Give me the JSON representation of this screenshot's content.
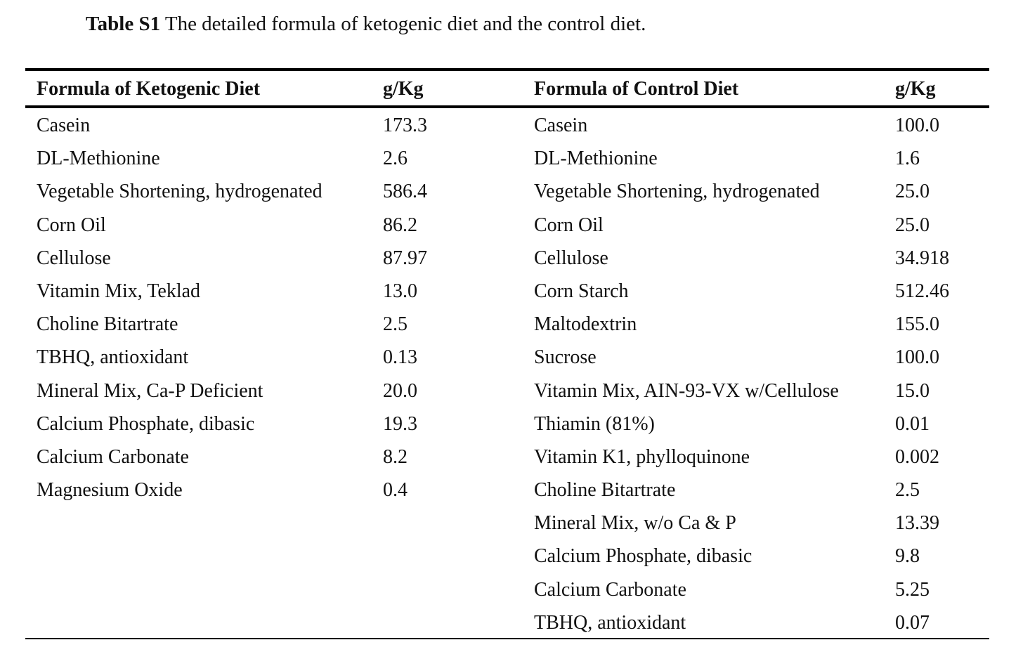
{
  "caption": {
    "label": "Table S1",
    "text": " The detailed formula of ketogenic diet and the control diet."
  },
  "table": {
    "headers": {
      "ketogenic_name": "Formula of Ketogenic Diet",
      "ketogenic_unit": "g/Kg",
      "control_name": "Formula of Control Diet",
      "control_unit": "g/Kg"
    },
    "rows": [
      {
        "k_name": "Casein",
        "k_val": "173.3",
        "c_name": "Casein",
        "c_val": "100.0"
      },
      {
        "k_name": "DL-Methionine",
        "k_val": "2.6",
        "c_name": "DL-Methionine",
        "c_val": "1.6"
      },
      {
        "k_name": "Vegetable Shortening, hydrogenated",
        "k_val": "586.4",
        "c_name": "Vegetable Shortening, hydrogenated",
        "c_val": "25.0"
      },
      {
        "k_name": "Corn Oil",
        "k_val": "86.2",
        "c_name": "Corn Oil",
        "c_val": "25.0"
      },
      {
        "k_name": "Cellulose",
        "k_val": "87.97",
        "c_name": "Cellulose",
        "c_val": "34.918"
      },
      {
        "k_name": "Vitamin Mix, Teklad",
        "k_val": "13.0",
        "c_name": "Corn Starch",
        "c_val": "512.46"
      },
      {
        "k_name": "Choline Bitartrate",
        "k_val": "2.5",
        "c_name": "Maltodextrin",
        "c_val": "155.0"
      },
      {
        "k_name": "TBHQ, antioxidant",
        "k_val": "0.13",
        "c_name": "Sucrose",
        "c_val": "100.0"
      },
      {
        "k_name": "Mineral Mix, Ca-P Deficient",
        "k_val": "20.0",
        "c_name": "Vitamin Mix, AIN-93-VX w/Cellulose",
        "c_val": "15.0"
      },
      {
        "k_name": "Calcium Phosphate, dibasic",
        "k_val": "19.3",
        "c_name": "Thiamin (81%)",
        "c_val": "0.01"
      },
      {
        "k_name": "Calcium Carbonate",
        "k_val": "8.2",
        "c_name": "Vitamin K1, phylloquinone",
        "c_val": "0.002"
      },
      {
        "k_name": "Magnesium Oxide",
        "k_val": "0.4",
        "c_name": "Choline Bitartrate",
        "c_val": "2.5"
      },
      {
        "k_name": "",
        "k_val": "",
        "c_name": "Mineral Mix, w/o Ca & P",
        "c_val": "13.39"
      },
      {
        "k_name": "",
        "k_val": "",
        "c_name": "Calcium Phosphate, dibasic",
        "c_val": "9.8"
      },
      {
        "k_name": "",
        "k_val": "",
        "c_name": "Calcium Carbonate",
        "c_val": "5.25"
      },
      {
        "k_name": "",
        "k_val": "",
        "c_name": "TBHQ, antioxidant",
        "c_val": "0.07"
      }
    ]
  }
}
